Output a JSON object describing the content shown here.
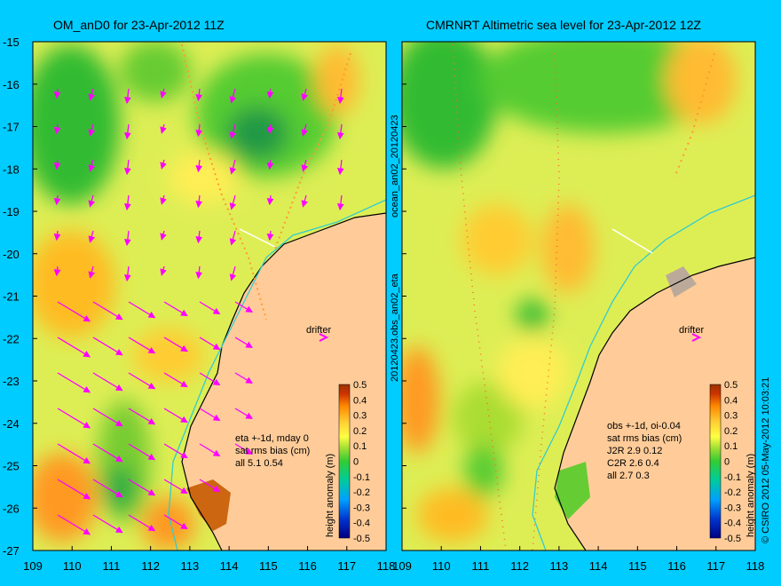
{
  "panels": [
    {
      "title": "OM_anD0 for 23-Apr-2012 11Z",
      "notes": [
        "eta +-1d, mday 0",
        "sat rms bias (cm)",
        "all 5.1 0.54"
      ],
      "drifter_label": "drifter"
    },
    {
      "title": "CMRNRT Altimetric sea level  for 23-Apr-2012 12Z",
      "notes": [
        "obs +-1d, oi-0.04",
        "sat rms bias (cm)",
        "J2R   2.9 0.12",
        "C2R   2.6 0.4",
        "all 2.7 0.3"
      ],
      "drifter_label": "drifter"
    }
  ],
  "axes": {
    "x_ticks": [
      "109",
      "110",
      "111",
      "112",
      "113",
      "114",
      "115",
      "116",
      "117",
      "118"
    ],
    "y_ticks": [
      "-15",
      "-16",
      "-17",
      "-18",
      "-19",
      "-20",
      "-21",
      "-22",
      "-23",
      "-24",
      "-25",
      "-26",
      "-27"
    ],
    "lon_range": [
      109,
      118
    ],
    "lat_range": [
      -27,
      -15
    ]
  },
  "colorbar": {
    "label": "height anomaly (m)",
    "ticks": [
      "0.5",
      "0.4",
      "0.3",
      "0.2",
      "0.1",
      "0",
      "-0.1",
      "-0.2",
      "-0.3",
      "-0.4",
      "-0.5"
    ],
    "range": [
      -0.5,
      0.5
    ]
  },
  "side_labels": {
    "middle_top": "ocean_an02_20120423",
    "middle_bottom": "20120423.obs_an02_eta",
    "right": "© CSIRO 2012   05-May-2012 10:03:21"
  },
  "colors": {
    "background": "#00ccff",
    "land": "#ffcc99",
    "current_arrows": "#ff00ff",
    "coastline": "#000000",
    "isobath": "#33cccc"
  }
}
